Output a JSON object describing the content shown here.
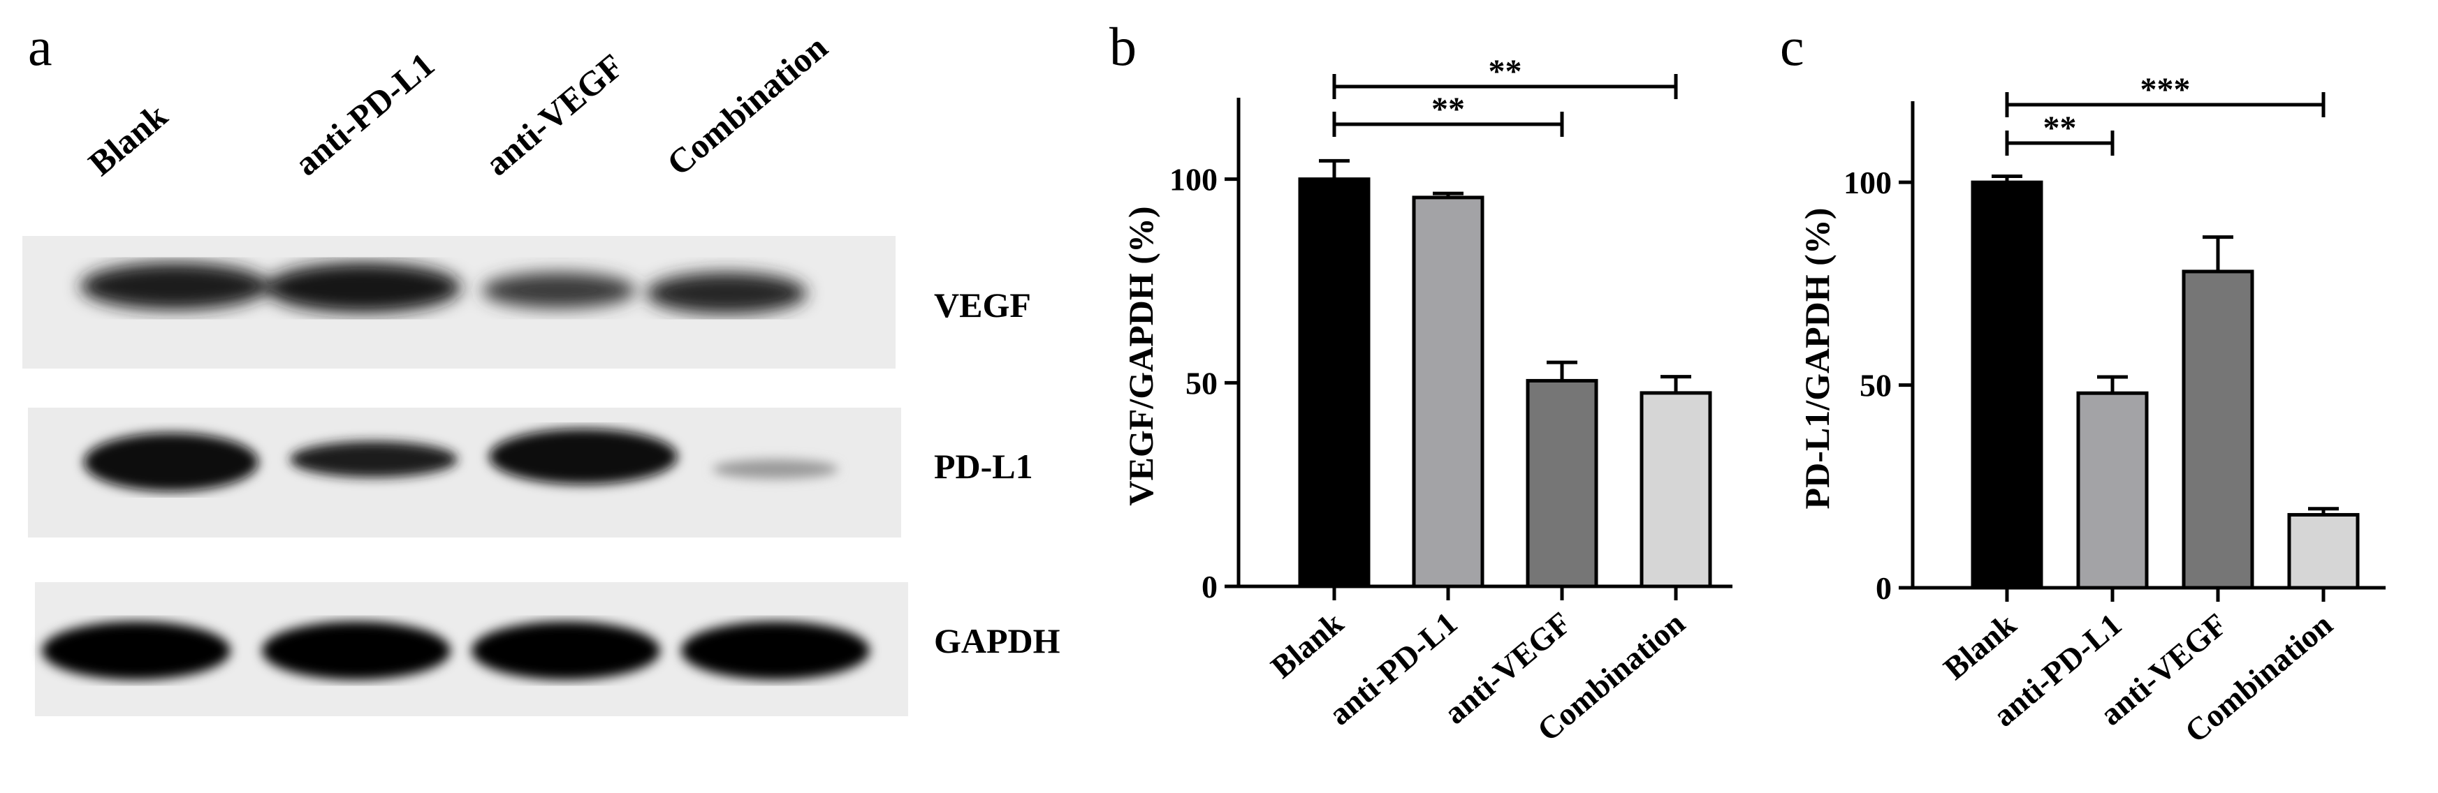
{
  "panels": {
    "a": {
      "letter": "a",
      "lanes": [
        "Blank",
        "anti-PD-L1",
        "anti-VEGF",
        "Combination"
      ],
      "bands": [
        "VEGF",
        "PD-L1",
        "GAPDH"
      ]
    },
    "b": {
      "letter": "b"
    },
    "c": {
      "letter": "c"
    }
  },
  "chart_data": [
    {
      "panel": "b",
      "type": "bar",
      "categories": [
        "Blank",
        "anti-PD-L1",
        "anti-VEGF",
        "Combination"
      ],
      "values": [
        100,
        95.5,
        50.5,
        47.5
      ],
      "errors": [
        4.5,
        1.0,
        4.5,
        4.0
      ],
      "bar_colors": [
        "#000000",
        "#a3a3a6",
        "#767676",
        "#d6d6d6"
      ],
      "ylabel": "VEGF/GAPDH (%)",
      "ylim": [
        0,
        120
      ],
      "yticks": [
        0,
        50,
        100
      ],
      "significance": [
        {
          "from": "Blank",
          "to": "anti-VEGF",
          "label": "**"
        },
        {
          "from": "Blank",
          "to": "Combination",
          "label": "**"
        }
      ]
    },
    {
      "panel": "c",
      "type": "bar",
      "categories": [
        "Blank",
        "anti-PD-L1",
        "anti-VEGF",
        "Combination"
      ],
      "values": [
        100,
        48,
        78,
        18
      ],
      "errors": [
        1.5,
        4.0,
        8.5,
        1.5
      ],
      "bar_colors": [
        "#000000",
        "#a3a3a6",
        "#767676",
        "#d6d6d6"
      ],
      "ylabel": "PD-L1/GAPDH (%)",
      "ylim": [
        0,
        120
      ],
      "yticks": [
        0,
        50,
        100
      ],
      "significance": [
        {
          "from": "Blank",
          "to": "anti-PD-L1",
          "label": "**"
        },
        {
          "from": "Blank",
          "to": "Combination",
          "label": "***"
        }
      ]
    }
  ]
}
